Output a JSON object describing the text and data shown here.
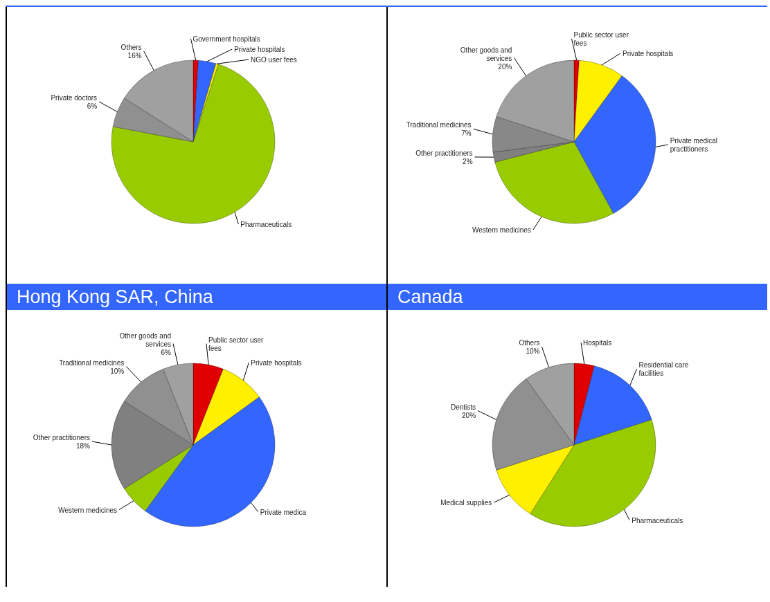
{
  "chart_data": [
    {
      "type": "pie",
      "categories": [
        "Government hospitals",
        "Private hospitals",
        "NGO user fees",
        "Pharmaceuticals",
        "Private doctors",
        "Others"
      ],
      "values": [
        1,
        3.5,
        0.5,
        73,
        6,
        16
      ],
      "colors": [
        "#e00000",
        "#3366ff",
        "#fff000",
        "#99cc00",
        "#909090",
        "#a0a0a0"
      ],
      "value_labels": [
        null,
        null,
        null,
        null,
        "6%",
        "16%"
      ]
    },
    {
      "type": "pie",
      "categories": [
        "Public sector user fees",
        "Private hospitals",
        "Private medical practitioners",
        "Western medicines",
        "Other practitioners",
        "Traditional medicines",
        "Other goods and services"
      ],
      "values": [
        1,
        9,
        32,
        29,
        2,
        7,
        20
      ],
      "colors": [
        "#e00000",
        "#fff000",
        "#3366ff",
        "#99cc00",
        "#808080",
        "#888888",
        "#a0a0a0"
      ],
      "value_labels": [
        null,
        null,
        null,
        null,
        "2%",
        "7%",
        "20%"
      ]
    },
    {
      "type": "pie",
      "title": "Hong Kong SAR, China",
      "categories": [
        "Public sector user fees",
        "Private hospitals",
        "Private medica",
        "Western medicines",
        "Other practitioners",
        "Traditional medicines",
        "Other goods and services"
      ],
      "values": [
        6,
        9,
        45,
        6,
        18,
        10,
        6
      ],
      "colors": [
        "#e00000",
        "#fff000",
        "#3366ff",
        "#99cc00",
        "#808080",
        "#909090",
        "#a0a0a0"
      ],
      "value_labels": [
        null,
        null,
        null,
        null,
        "18%",
        "10%",
        "6%"
      ]
    },
    {
      "type": "pie",
      "title": "Canada",
      "categories": [
        "Hospitals",
        "Residential care facilities",
        "Pharmaceuticals",
        "Medical supplies",
        "Dentists",
        "Others"
      ],
      "values": [
        4,
        16,
        39,
        11,
        20,
        10
      ],
      "colors": [
        "#e00000",
        "#3366ff",
        "#99cc00",
        "#fff000",
        "#909090",
        "#a0a0a0"
      ],
      "value_labels": [
        null,
        null,
        null,
        null,
        "20%",
        "10%"
      ]
    }
  ]
}
